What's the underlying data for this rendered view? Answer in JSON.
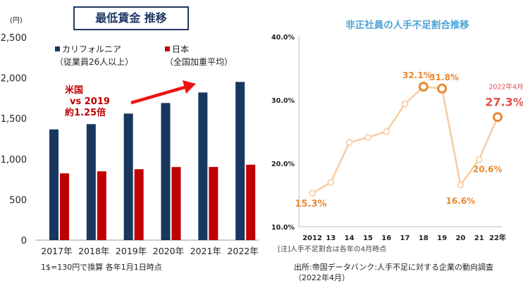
{
  "left_title": "最低賃金 推移",
  "left_footnote": "1$=130円で換算 各年1月1日時点",
  "right_footnote": "[注]人手不足割合は各年の4月時点",
  "source": "出所:帝国データバンク:人手不足に対する企業の動向調査",
  "source_date": "（2022年4月）",
  "colors": {
    "us": "#17375e",
    "jp": "#c00000",
    "line": "#f8cba0",
    "highlight": "#e8872f",
    "arrow": "#ee1111",
    "label_orange": "#e8872f",
    "label_red": "#e04e4e",
    "right_title": "#4aa3d6"
  },
  "chart_data": [
    {
      "type": "bar",
      "title": "最低賃金 推移",
      "unit": "(円)",
      "categories": [
        "2017年",
        "2018年",
        "2019年",
        "2020年",
        "2021年",
        "2022年"
      ],
      "series": [
        {
          "name": "カリフォルニア",
          "sub": "（従業員26人以上）",
          "values": [
            1365,
            1430,
            1560,
            1690,
            1820,
            1950
          ]
        },
        {
          "name": "日本",
          "sub": "（全国加重平均）",
          "values": [
            823,
            848,
            874,
            901,
            902,
            930
          ]
        }
      ],
      "ylim": [
        0,
        2500
      ],
      "yticks": [
        0,
        500,
        1000,
        1500,
        2000,
        2500
      ],
      "ytick_labels": [
        "0",
        "500",
        "1,000",
        "1,500",
        "2,000",
        "2,500"
      ],
      "annotation": [
        "米国",
        "vs 2019",
        "約1.25倍"
      ]
    },
    {
      "type": "line",
      "title": "非正社員の人手不足割合推移",
      "x": [
        "2012",
        "13",
        "14",
        "15",
        "16",
        "17",
        "18",
        "19",
        "20",
        "21",
        "22年"
      ],
      "values": [
        15.3,
        17.0,
        23.3,
        24.1,
        25.0,
        29.4,
        32.1,
        31.8,
        16.6,
        20.6,
        27.3
      ],
      "ylim": [
        10,
        40
      ],
      "yticks": [
        10,
        20,
        30,
        40
      ],
      "ytick_labels": [
        "10.0%",
        "20.0%",
        "30.0%",
        "40.0%"
      ],
      "labels": [
        {
          "index": 0,
          "text": "15.3%"
        },
        {
          "index": 6,
          "text": "32.1%"
        },
        {
          "index": 7,
          "text": "31.8%"
        },
        {
          "index": 8,
          "text": "16.6%"
        },
        {
          "index": 9,
          "text": "20.6%"
        },
        {
          "index": 10,
          "text": "27.3%",
          "caption": "2022年4月"
        }
      ],
      "highlight_points": [
        6,
        7,
        10
      ]
    }
  ]
}
